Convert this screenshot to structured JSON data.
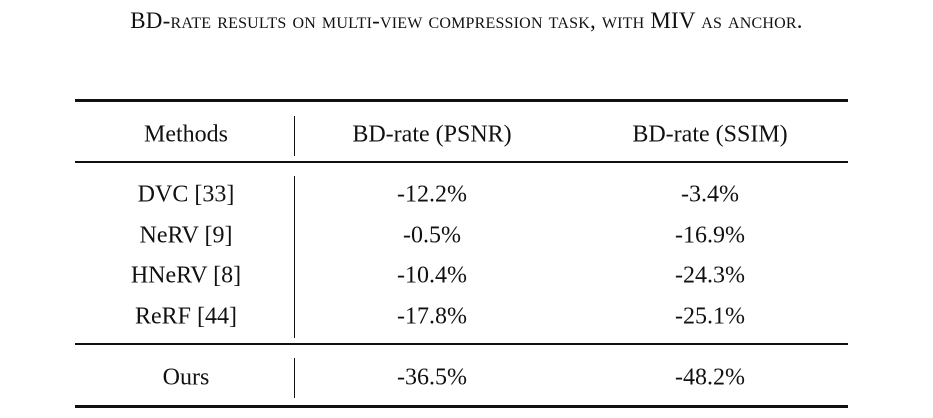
{
  "caption": "BD-rate results on multi-view compression task, with MIV as anchor.",
  "table": {
    "header": [
      "Methods",
      "BD-rate (PSNR)",
      "BD-rate (SSIM)"
    ],
    "rows": [
      [
        "DVC [33]",
        "-12.2%",
        "-3.4%"
      ],
      [
        "NeRV [9]",
        "-0.5%",
        "-16.9%"
      ],
      [
        "HNeRV [8]",
        "-10.4%",
        "-24.3%"
      ],
      [
        "ReRF [44]",
        "-17.8%",
        "-25.1%"
      ]
    ],
    "footer": [
      "Ours",
      "-36.5%",
      "-48.2%"
    ]
  }
}
